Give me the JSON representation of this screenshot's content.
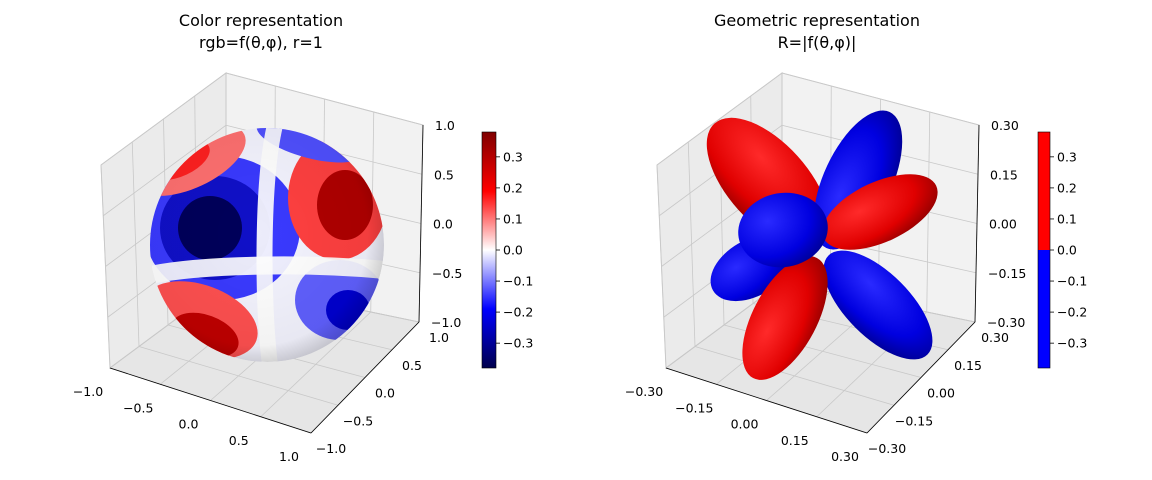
{
  "chart_data": [
    {
      "type": "surface3d",
      "title_line1": "Color representation",
      "title_line2": "rgb=f(θ,φ), r=1",
      "axes": {
        "x": {
          "range": [
            -1.0,
            1.0
          ],
          "ticks": [
            "−1.0",
            "−0.5",
            "0.0",
            "0.5",
            "1.0"
          ]
        },
        "y": {
          "range": [
            -1.0,
            1.0
          ],
          "ticks": [
            "−1.0",
            "−0.5",
            "0.0",
            "0.5",
            "1.0"
          ]
        },
        "z": {
          "range": [
            -1.0,
            1.0
          ],
          "ticks": [
            "−1.0",
            "−0.5",
            "0.0",
            "0.5",
            "1.0"
          ]
        }
      },
      "colorbar": {
        "colormap": "seismic",
        "range": [
          -0.38,
          0.38
        ],
        "ticks": [
          "0.3",
          "0.2",
          "0.1",
          "0.0",
          "−0.1",
          "−0.2",
          "−0.3"
        ],
        "tick_values": [
          0.3,
          0.2,
          0.1,
          0.0,
          -0.1,
          -0.2,
          -0.3
        ]
      },
      "grid": true
    },
    {
      "type": "surface3d",
      "title_line1": "Geometric representation",
      "title_line2": "R=|f(θ,φ)|",
      "axes": {
        "x": {
          "range": [
            -0.3,
            0.3
          ],
          "ticks": [
            "−0.30",
            "−0.15",
            "0.00",
            "0.15",
            "0.30"
          ]
        },
        "y": {
          "range": [
            -0.3,
            0.3
          ],
          "ticks": [
            "−0.30",
            "−0.15",
            "0.00",
            "0.15",
            "0.30"
          ]
        },
        "z": {
          "range": [
            -0.3,
            0.3
          ],
          "ticks": [
            "−0.30",
            "−0.15",
            "0.00",
            "0.15",
            "0.30"
          ]
        }
      },
      "colorbar": {
        "colormap": "binary red/blue",
        "range": [
          -0.38,
          0.38
        ],
        "ticks": [
          "0.3",
          "0.2",
          "0.1",
          "0.0",
          "−0.1",
          "−0.2",
          "−0.3"
        ],
        "tick_values": [
          0.3,
          0.2,
          0.1,
          0.0,
          -0.1,
          -0.2,
          -0.3
        ],
        "positive_color": "#ff0000",
        "negative_color": "#0000ff"
      },
      "grid": true
    }
  ],
  "colors": {
    "pane": "#f2f2f2",
    "pane_side": "#e6e6e6",
    "grid": "#c8c8c8",
    "red": "#ff0000",
    "blue": "#0000ff"
  }
}
